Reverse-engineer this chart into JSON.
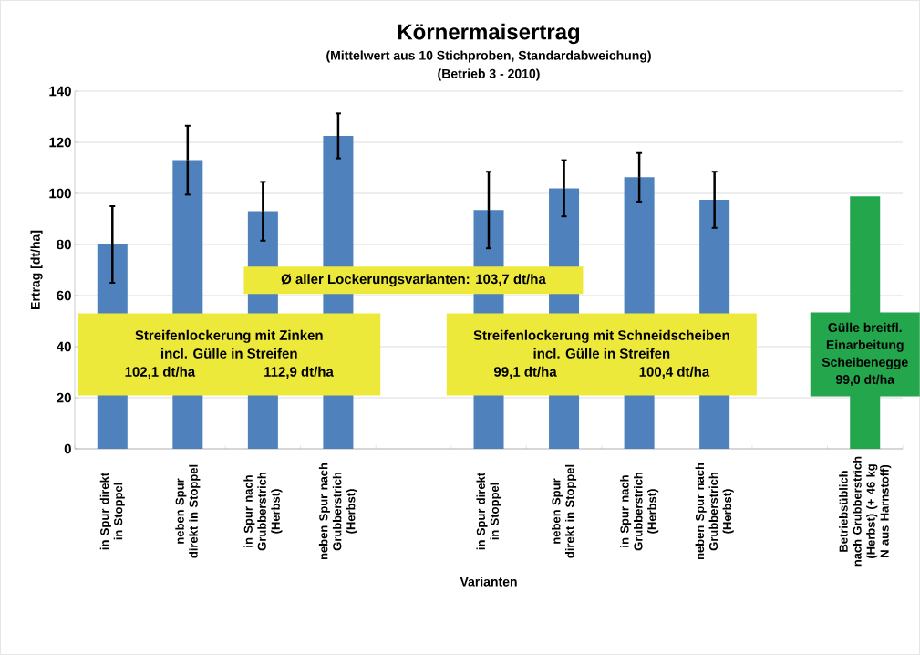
{
  "chart_data": {
    "type": "bar",
    "title": "Körnermaisertrag",
    "subtitle": "(Mittelwert aus 10 Stichproben, Standardabweichung)",
    "xlabel": "Varianten",
    "ylabel": "Ertrag [dt/ha]",
    "categories": [
      "in Spur direkt in Stoppel",
      "neben Spur direkt in Stoppel",
      "in Spur nach Grubberstrich (Herbst)",
      "neben Spur nach Grubberstrich (Herbst)",
      null,
      "in Spur direkt in Stoppel",
      "neben Spur direkt in Stoppel",
      "in Spur nach Grubberstrich (Herbst)",
      "neben Spur nach Grubberstrich (Herbst)",
      null,
      "Betriebsüblich nach Grubberstrich (Herbst) (+ 46 kg N aus Harnstoff)"
    ],
    "values": [
      80,
      113,
      93,
      122.5,
      null,
      93.5,
      102,
      106.3,
      97.5,
      null,
      98.8
    ],
    "errors": [
      15,
      13.5,
      11.5,
      8.8,
      null,
      15,
      11,
      9.5,
      11,
      null,
      null
    ],
    "colors": [
      "#4f81bd",
      "#4f81bd",
      "#4f81bd",
      "#4f81bd",
      "#4f81bd",
      "#4f81bd",
      "#4f81bd",
      "#4f81bd",
      "#4f81bd",
      "#4f81bd",
      "#23a64c"
    ],
    "ylim": [
      0,
      140
    ],
    "yticks": [
      0,
      20,
      40,
      60,
      80,
      100,
      120,
      140
    ],
    "grid": "y",
    "annotations": [
      "(Betrieb 3 - 2010)",
      "Ø  aller Lockerungsvarianten: 103,7 dt/ha",
      "Streifenlockerung  mit Zinken",
      "incl. Gülle in Streifen",
      "102,1 dt/ha",
      "112,9 dt/ha",
      "Streifenlockerung  mit Schneidscheiben",
      "incl. Gülle in Streifen",
      "99,1 dt/ha",
      "100,4 dt/ha",
      "Gülle breitfl.",
      "Einarbeitung",
      "Scheibenegge",
      "99,0 dt/ha"
    ]
  }
}
